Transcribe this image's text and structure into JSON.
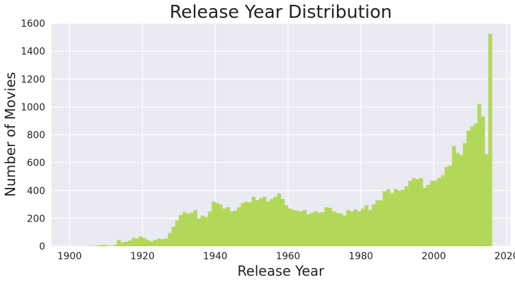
{
  "chart_data": {
    "type": "bar",
    "title": "Release Year Distribution",
    "xlabel": "Release Year",
    "ylabel": "Number of Movies",
    "xlim": [
      1895,
      2021
    ],
    "ylim": [
      0,
      1600
    ],
    "x_ticks": [
      1900,
      1920,
      1940,
      1960,
      1980,
      2000,
      2020
    ],
    "y_ticks": [
      0,
      200,
      400,
      600,
      800,
      1000,
      1200,
      1400,
      1600
    ],
    "grid": true,
    "bar_color": "#b2d85a",
    "plot_background": "#eaeaf2",
    "grid_color": "#ffffff",
    "bin_start": 1900,
    "bin_width": 1,
    "values": [
      0,
      0,
      1,
      0,
      1,
      3,
      2,
      5,
      7,
      10,
      5,
      4,
      10,
      45,
      28,
      32,
      40,
      60,
      55,
      70,
      58,
      45,
      35,
      45,
      55,
      50,
      55,
      95,
      140,
      185,
      225,
      245,
      235,
      240,
      260,
      200,
      220,
      210,
      250,
      320,
      310,
      300,
      270,
      280,
      250,
      255,
      280,
      310,
      320,
      315,
      355,
      330,
      345,
      355,
      320,
      340,
      355,
      380,
      340,
      295,
      270,
      260,
      255,
      250,
      260,
      230,
      240,
      250,
      240,
      245,
      280,
      275,
      250,
      240,
      235,
      220,
      260,
      250,
      265,
      250,
      270,
      295,
      260,
      300,
      330,
      330,
      395,
      410,
      380,
      410,
      400,
      405,
      430,
      470,
      490,
      480,
      490,
      420,
      440,
      470,
      470,
      490,
      510,
      570,
      580,
      720,
      670,
      655,
      740,
      830,
      860,
      880,
      1020,
      930,
      660,
      1525
    ]
  }
}
